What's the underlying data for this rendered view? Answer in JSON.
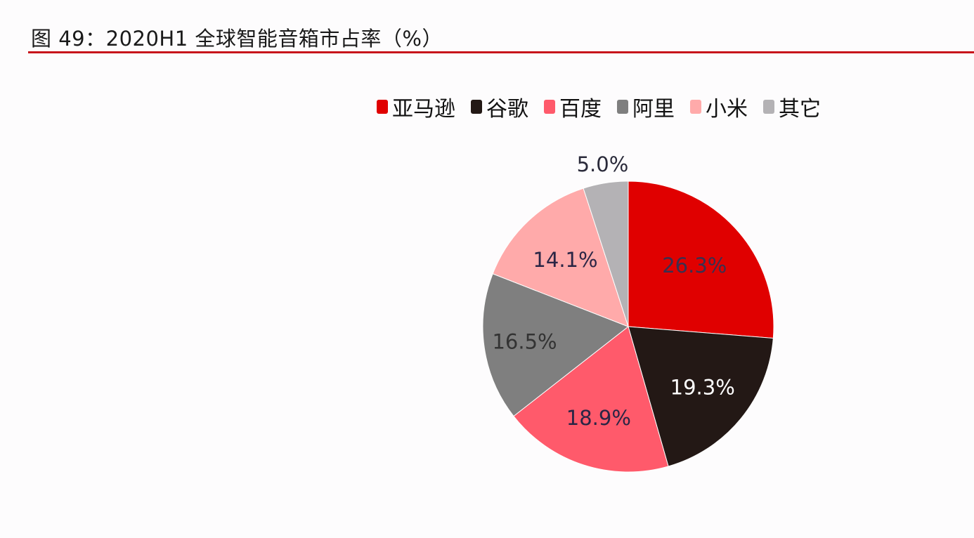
{
  "figure": {
    "title": "图 49：2020H1 全球智能音箱市占率（%）",
    "accent_color": "#c8151b"
  },
  "chart_data": {
    "type": "pie",
    "title": "图 49：2020H1 全球智能音箱市占率（%）",
    "categories": [
      "亚马逊",
      "谷歌",
      "百度",
      "阿里",
      "小米",
      "其它"
    ],
    "values": [
      26.3,
      19.3,
      18.9,
      16.5,
      14.1,
      5.0
    ],
    "labels": [
      "26.3%",
      "19.3%",
      "18.9%",
      "16.5%",
      "14.1%",
      "5.0%"
    ],
    "colors": [
      "#e00000",
      "#231815",
      "#ff5a6b",
      "#7f7f7f",
      "#ffaaaa",
      "#b4b2b5"
    ],
    "label_colors": [
      "#3a3050",
      "#ffffff",
      "#2a2545",
      "#333333",
      "#2a2545",
      "#2a2a3a"
    ],
    "start_angle_deg": 0,
    "direction": "clockwise",
    "legend_position": "top-right",
    "unit": "%"
  }
}
